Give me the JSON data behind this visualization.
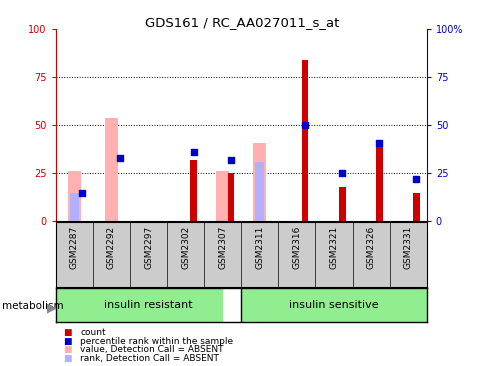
{
  "title": "GDS161 / RC_AA027011_s_at",
  "samples": [
    "GSM2287",
    "GSM2292",
    "GSM2297",
    "GSM2302",
    "GSM2307",
    "GSM2311",
    "GSM2316",
    "GSM2321",
    "GSM2326",
    "GSM2331"
  ],
  "count_red": [
    0,
    0,
    0,
    32,
    25,
    0,
    84,
    18,
    39,
    15
  ],
  "percentile_rank_blue": [
    15,
    33,
    0,
    36,
    32,
    0,
    50,
    25,
    41,
    22
  ],
  "value_absent_pink": [
    26,
    54,
    0,
    0,
    26,
    41,
    0,
    0,
    0,
    0
  ],
  "rank_absent_lightblue": [
    15,
    0,
    0,
    0,
    0,
    31,
    0,
    0,
    0,
    0
  ],
  "group_labels": [
    "insulin resistant",
    "insulin sensitive"
  ],
  "group_color": "#90EE90",
  "group_divider": 4.5,
  "yticks": [
    0,
    25,
    50,
    75,
    100
  ],
  "ylim": [
    0,
    100
  ],
  "color_red": "#cc0000",
  "color_blue": "#0000cc",
  "color_pink": "#ffb0b0",
  "color_lightblue": "#b0b0ff",
  "bg_xtick": "#cccccc",
  "legend_items": [
    "count",
    "percentile rank within the sample",
    "value, Detection Call = ABSENT",
    "rank, Detection Call = ABSENT"
  ]
}
